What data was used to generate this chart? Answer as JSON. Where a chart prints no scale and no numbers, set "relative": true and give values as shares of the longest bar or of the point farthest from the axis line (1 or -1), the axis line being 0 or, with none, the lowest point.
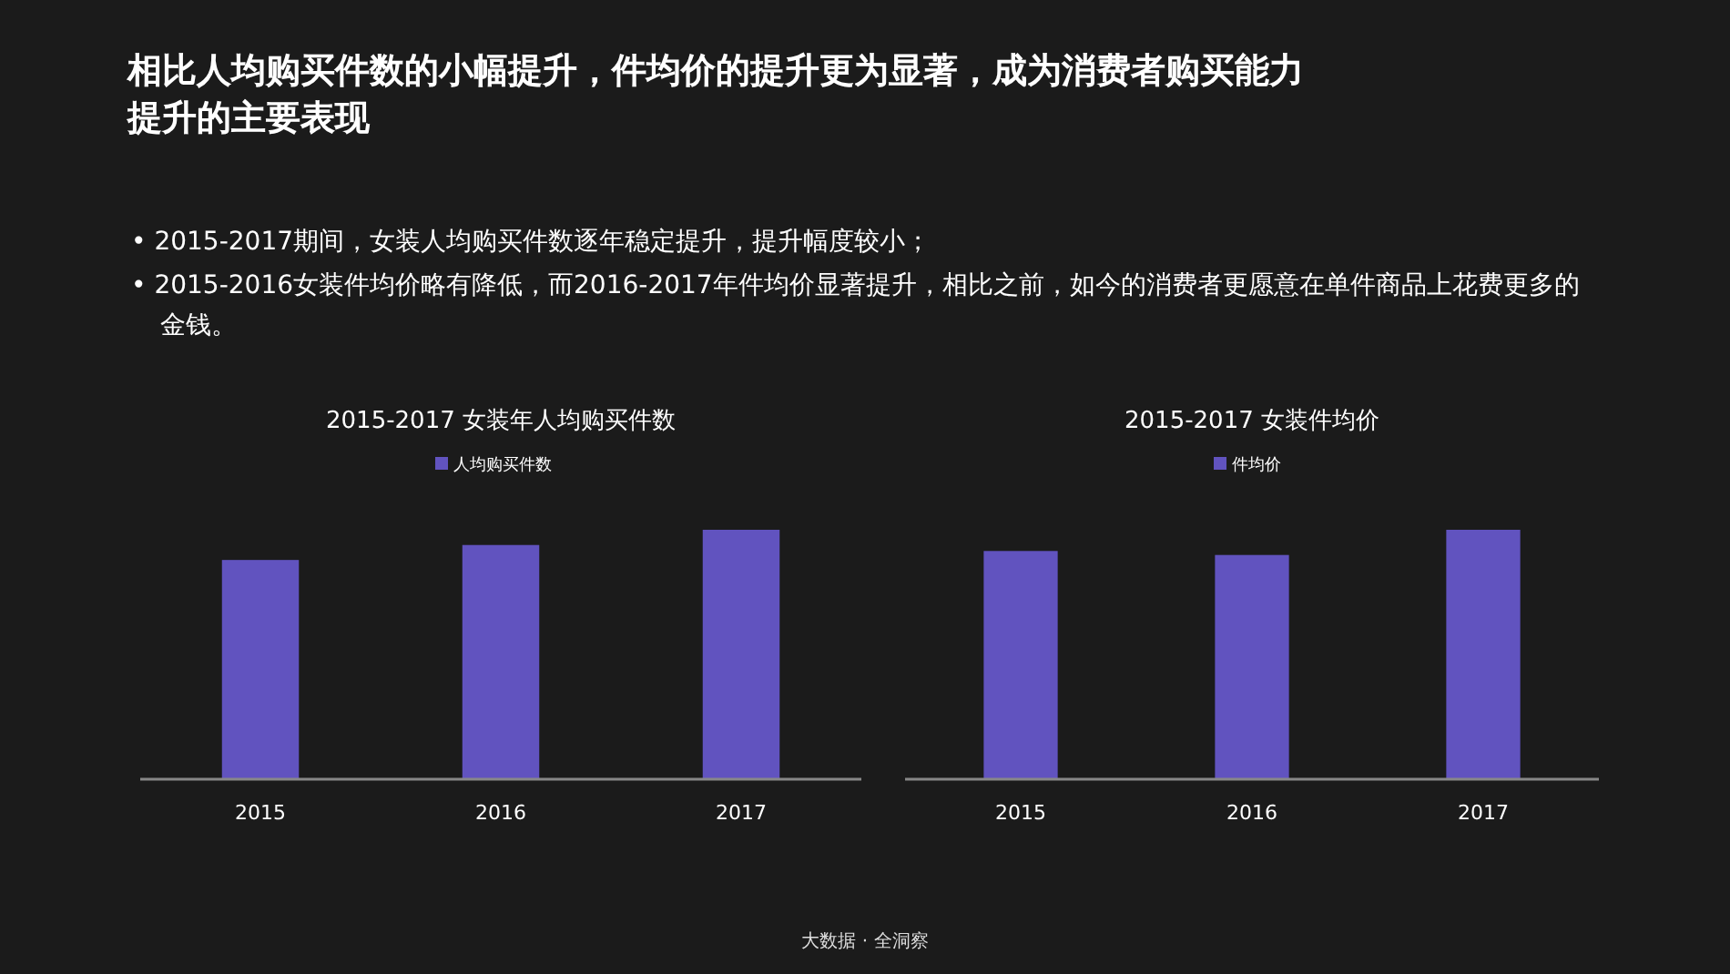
{
  "chart_data": [
    {
      "type": "other",
      "title": "相比人均购买件数的小幅提升，件均价的提升更为显著，成为消费者购买能力提升的主要表现",
      "annotations": [
        "•  2015-2017期间，女装人均购买件数逐年稳定提升，提升幅度较小；",
        "•  2015-2016女装件均价略有降低，而2016-2017年件均价显著提升，相比之前，如今的消费者更愿意在单件商品上花费更多的金钱。",
        "大数据 · 全洞察"
      ]
    },
    {
      "type": "bar",
      "title": "2015-2017  女装年人均购买件数",
      "categories": [
        "2015",
        "2016",
        "2017"
      ],
      "relative": true,
      "legend": "top",
      "series": [
        {
          "name": "人均购买件数",
          "color": "#6153bf",
          "values": [
            0.879,
            0.939,
            1
          ]
        }
      ]
    },
    {
      "type": "bar",
      "title": "2015-2017  女装件均价",
      "categories": [
        "2015",
        "2016",
        "2017"
      ],
      "relative": true,
      "legend": "top",
      "series": [
        {
          "name": "件均价",
          "color": "#6153bf",
          "values": [
            0.915,
            0.899,
            1
          ]
        }
      ]
    }
  ]
}
